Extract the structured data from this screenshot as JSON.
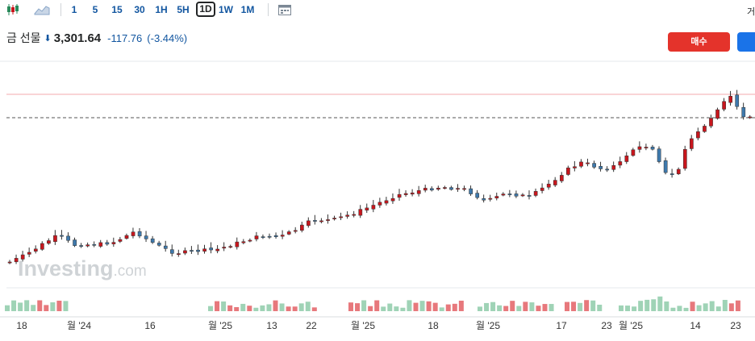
{
  "toolbar": {
    "intervals": [
      "1",
      "5",
      "15",
      "30",
      "1H",
      "5H",
      "1D",
      "1W",
      "1M"
    ],
    "active_interval": "1D",
    "right_label": "거"
  },
  "header": {
    "instrument_name": "금 선물",
    "price": "3,301.64",
    "change": "-117.76",
    "change_pct": "(-3.44%)"
  },
  "buttons": {
    "buy_label": "매수"
  },
  "watermark": {
    "brand": "Investing",
    "suffix": ".com"
  },
  "colors": {
    "up": "#c8161d",
    "down": "#3e79ac",
    "vol_up": "#e7787c",
    "vol_down": "#9fd3b6",
    "accent": "#1256a0"
  },
  "chart_data": {
    "type": "candlestick",
    "x_tick_labels": [
      "18",
      "월 '24",
      "16",
      "월 '25",
      "13",
      "22",
      "월 '25",
      "18",
      "월 '25",
      "17",
      "23",
      "월 '25",
      "14",
      "23"
    ],
    "reference_lines": [
      "last price dashed line",
      "high price line"
    ]
  }
}
